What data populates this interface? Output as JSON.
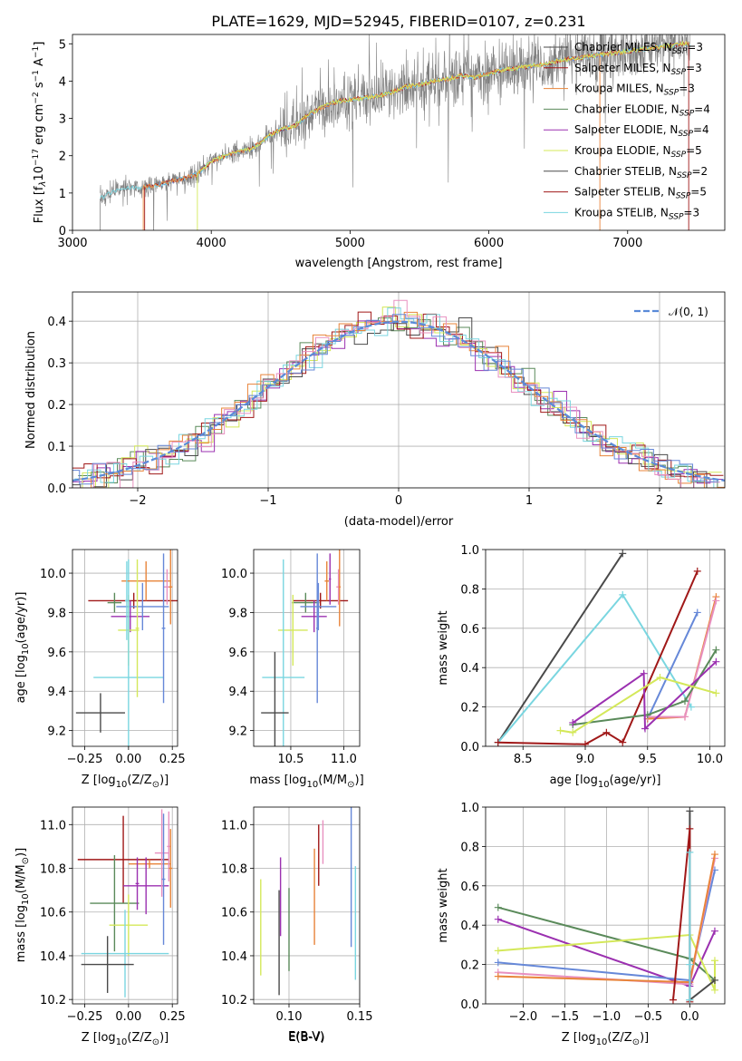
{
  "colors": [
    "#5a8a5a",
    "#9b30b0",
    "#d4e85a",
    "#4a4a4a",
    "#a01818",
    "#7ad6e0",
    "#e8843a",
    "#e890c0",
    "#6688d8"
  ],
  "ssp_models": [
    {
      "label": "Chabrier MILES, N",
      "sub": "SSP",
      "suffix": "=3"
    },
    {
      "label": "Salpeter MILES, N",
      "sub": "SSP",
      "suffix": "=3"
    },
    {
      "label": "Kroupa MILES, N",
      "sub": "SSP",
      "suffix": "=3"
    },
    {
      "label": "Chabrier ELODIE, N",
      "sub": "SSP",
      "suffix": "=4"
    },
    {
      "label": "Salpeter ELODIE, N",
      "sub": "SSP",
      "suffix": "=4"
    },
    {
      "label": "Kroupa ELODIE, N",
      "sub": "SSP",
      "suffix": "=5"
    },
    {
      "label": "Chabrier STELIB, N",
      "sub": "SSP",
      "suffix": "=2"
    },
    {
      "label": "Salpeter STELIB, N",
      "sub": "SSP",
      "suffix": "=5"
    },
    {
      "label": "Kroupa STELIB, N",
      "sub": "SSP",
      "suffix": "=3"
    }
  ],
  "chart_data": [
    {
      "type": "line",
      "title": "PLATE=1629, MJD=52945, FIBERID=0107, z=0.231",
      "xlabel": "wavelength [Angstrom, rest frame]",
      "ylabel": "Flux [f",
      "ylabel_sub": "λ",
      "ylabel_rest": "10",
      "ylabel_exp": "−17",
      "ylabel_units": " erg cm",
      "ylabel_exp2": "−2",
      "ylabel_s": " s",
      "ylabel_exp3": "−1",
      "ylabel_A": " A",
      "ylabel_exp4": "−1",
      "ylabel_close": "]",
      "xlim": [
        3000,
        7700
      ],
      "ylim": [
        0,
        5.25
      ],
      "xticks": [
        "3000",
        "4000",
        "5000",
        "6000",
        "7000"
      ],
      "yticks": [
        "0",
        "1",
        "2",
        "3",
        "4",
        "5"
      ],
      "legend": "upper right",
      "grid": false,
      "data_color": "#808080",
      "continuum": [
        [
          3200,
          0.85
        ],
        [
          3300,
          1.05
        ],
        [
          3400,
          1.15
        ],
        [
          3500,
          1.15
        ],
        [
          3600,
          1.2
        ],
        [
          3700,
          1.3
        ],
        [
          3800,
          1.4
        ],
        [
          3900,
          1.5
        ],
        [
          4000,
          1.85
        ],
        [
          4100,
          2.0
        ],
        [
          4200,
          2.1
        ],
        [
          4300,
          2.2
        ],
        [
          4400,
          2.5
        ],
        [
          4500,
          2.7
        ],
        [
          4600,
          2.8
        ],
        [
          4700,
          3.1
        ],
        [
          4800,
          3.3
        ],
        [
          4900,
          3.45
        ],
        [
          5000,
          3.5
        ],
        [
          5100,
          3.55
        ],
        [
          5200,
          3.6
        ],
        [
          5300,
          3.7
        ],
        [
          5400,
          3.85
        ],
        [
          5500,
          3.9
        ],
        [
          5600,
          4.0
        ],
        [
          5700,
          4.05
        ],
        [
          5800,
          4.15
        ],
        [
          5900,
          4.1
        ],
        [
          6000,
          4.2
        ],
        [
          6100,
          4.3
        ],
        [
          6200,
          4.35
        ],
        [
          6300,
          4.4
        ],
        [
          6400,
          4.45
        ],
        [
          6500,
          4.55
        ],
        [
          6600,
          4.6
        ],
        [
          6700,
          4.65
        ],
        [
          6800,
          4.7
        ],
        [
          6900,
          4.75
        ],
        [
          7000,
          4.8
        ],
        [
          7100,
          4.85
        ],
        [
          7200,
          4.9
        ],
        [
          7300,
          4.95
        ],
        [
          7400,
          5.0
        ]
      ]
    },
    {
      "type": "step",
      "xlabel": "(data-model)/error",
      "ylabel": "Normed distribution",
      "xlim": [
        -2.5,
        2.5
      ],
      "ylim": [
        0,
        0.47
      ],
      "xticks": [
        "−2",
        "−1",
        "0",
        "1",
        "2"
      ],
      "yticks": [
        "0.0",
        "0.1",
        "0.2",
        "0.3",
        "0.4"
      ],
      "grid": true,
      "legend": "upper right",
      "gaussian_label": "𝒩(0, 1)",
      "gaussian_color": "#5a8ad8",
      "bin_width": 0.1
    },
    {
      "type": "errorbar",
      "xlabel": "Z [log",
      "xlabel_sub": "10",
      "xlabel_rest": "(Z/Z",
      "xlabel_sun": "⊙",
      "xlabel_close": ")]",
      "ylabel": "age  [log",
      "ylabel_sub": "10",
      "ylabel_rest": "(age/yr)]",
      "xlim": [
        -0.32,
        0.28
      ],
      "ylim": [
        9.12,
        10.12
      ],
      "xticks": [
        "−0.25",
        "0.00",
        "0.25"
      ],
      "yticks": [
        "9.2",
        "9.4",
        "9.6",
        "9.8",
        "10.0"
      ],
      "grid": true,
      "points": [
        {
          "c": 4,
          "x": 0.03,
          "xerr": 0.26,
          "y": 9.86,
          "yerr": 0.04
        },
        {
          "c": 0,
          "x": -0.08,
          "xerr": 0.04,
          "y": 9.85,
          "yerr": 0.05
        },
        {
          "c": 1,
          "x": 0.01,
          "xerr": 0.11,
          "y": 9.78,
          "yerr": 0.08
        },
        {
          "c": 8,
          "x": 0.08,
          "xerr": 0.15,
          "y": 9.83,
          "yerr": 0.12
        },
        {
          "c": 2,
          "x": 0.0,
          "xerr": 0.06,
          "y": 9.71,
          "yerr": 0.18
        },
        {
          "c": 5,
          "x": 0.0,
          "xerr": 0.2,
          "y": 9.47,
          "yerr": 0.6
        },
        {
          "c": 3,
          "x": -0.16,
          "xerr": 0.14,
          "y": 9.29,
          "yerr": 0.1
        },
        {
          "c": 6,
          "x": 0.1,
          "xerr": 0.14,
          "y": 9.96,
          "yerr": 0.1
        },
        {
          "c": 7,
          "x": 0.22,
          "xerr": 0.02,
          "y": 9.93,
          "yerr": 0.09
        },
        {
          "c": 8,
          "x": 0.2,
          "xerr": 0.01,
          "y": 9.72,
          "yerr": 0.38
        },
        {
          "c": 6,
          "x": 0.24,
          "xerr": 0.01,
          "y": 9.93,
          "yerr": 0.19
        },
        {
          "c": 2,
          "x": 0.05,
          "xerr": 0.01,
          "y": 9.72,
          "yerr": 0.35
        },
        {
          "c": 5,
          "x": -0.01,
          "xerr": 0.01,
          "y": 9.86,
          "yerr": 0.2
        }
      ]
    },
    {
      "type": "errorbar",
      "xlabel": "mass [log",
      "xlabel_sub": "10",
      "xlabel_rest": "(M/M",
      "xlabel_sun": "⊙",
      "xlabel_close": ")]",
      "xlim": [
        10.15,
        11.15
      ],
      "ylim": [
        9.12,
        10.12
      ],
      "xticks": [
        "10.5",
        "11.0"
      ],
      "yticks": [
        "9.2",
        "9.4",
        "9.6",
        "9.8",
        "10.0"
      ],
      "grid": true,
      "points": [
        {
          "c": 4,
          "x": 10.78,
          "xerr": 0.26,
          "y": 9.86,
          "yerr": 0.04
        },
        {
          "c": 0,
          "x": 10.64,
          "xerr": 0.13,
          "y": 9.85,
          "yerr": 0.05
        },
        {
          "c": 1,
          "x": 10.72,
          "xerr": 0.12,
          "y": 9.78,
          "yerr": 0.08
        },
        {
          "c": 8,
          "x": 10.76,
          "xerr": 0.17,
          "y": 9.83,
          "yerr": 0.12
        },
        {
          "c": 2,
          "x": 10.52,
          "xerr": 0.14,
          "y": 9.71,
          "yerr": 0.18
        },
        {
          "c": 5,
          "x": 10.43,
          "xerr": 0.2,
          "y": 9.47,
          "yerr": 0.6
        },
        {
          "c": 3,
          "x": 10.35,
          "xerr": 0.13,
          "y": 9.29,
          "yerr": 0.31
        },
        {
          "c": 6,
          "x": 10.84,
          "xerr": 0.02,
          "y": 9.96,
          "yerr": 0.1
        },
        {
          "c": 7,
          "x": 10.95,
          "xerr": 0.02,
          "y": 9.93,
          "yerr": 0.09
        },
        {
          "c": 8,
          "x": 10.75,
          "xerr": 0.01,
          "y": 9.72,
          "yerr": 0.38
        },
        {
          "c": 6,
          "x": 10.96,
          "xerr": 0.01,
          "y": 9.93,
          "yerr": 0.2
        },
        {
          "c": 1,
          "x": 10.87,
          "xerr": 0.01,
          "y": 9.97,
          "yerr": 0.13
        }
      ]
    },
    {
      "type": "line",
      "xlabel": "age  [log",
      "xlabel_sub": "10",
      "xlabel_rest": "(age/yr)]",
      "ylabel": "mass weight",
      "xlim": [
        8.2,
        10.12
      ],
      "ylim": [
        0,
        1.0
      ],
      "xticks": [
        "8.5",
        "9.0",
        "9.5",
        "10.0"
      ],
      "yticks": [
        "0.0",
        "0.2",
        "0.4",
        "0.6",
        "0.8",
        "1.0"
      ],
      "grid": true,
      "series": [
        {
          "c": 3,
          "x": [
            8.3,
            9.3
          ],
          "y": [
            0.02,
            0.98
          ]
        },
        {
          "c": 5,
          "x": [
            8.3,
            9.3,
            9.85
          ],
          "y": [
            0.02,
            0.77,
            0.2
          ]
        },
        {
          "c": 4,
          "x": [
            8.3,
            9.0,
            9.17,
            9.3,
            9.9
          ],
          "y": [
            0.02,
            0.01,
            0.07,
            0.02,
            0.89
          ]
        },
        {
          "c": 8,
          "x": [
            9.5,
            9.9
          ],
          "y": [
            0.14,
            0.68
          ]
        },
        {
          "c": 6,
          "x": [
            9.5,
            9.8,
            10.05
          ],
          "y": [
            0.14,
            0.15,
            0.76
          ]
        },
        {
          "c": 7,
          "x": [
            9.5,
            9.8,
            10.05
          ],
          "y": [
            0.15,
            0.15,
            0.74
          ]
        },
        {
          "c": 0,
          "x": [
            8.9,
            9.5,
            9.8,
            10.05
          ],
          "y": [
            0.11,
            0.16,
            0.23,
            0.49
          ]
        },
        {
          "c": 1,
          "x": [
            8.9,
            9.47,
            9.48,
            10.05
          ],
          "y": [
            0.12,
            0.37,
            0.09,
            0.43
          ]
        },
        {
          "c": 2,
          "x": [
            8.8,
            8.9,
            9.6,
            10.05
          ],
          "y": [
            0.08,
            0.07,
            0.35,
            0.27
          ]
        }
      ]
    },
    {
      "type": "errorbar",
      "xlabel": "Z [log",
      "xlabel_sub": "10",
      "xlabel_rest": "(Z/Z",
      "xlabel_sun": "⊙",
      "xlabel_close": ")]",
      "ylabel": "mass [log",
      "ylabel_sub": "10",
      "ylabel_rest": "(M/M",
      "ylabel_sun": "⊙",
      "ylabel_close": ")]",
      "xlim": [
        -0.32,
        0.28
      ],
      "ylim": [
        10.18,
        11.08
      ],
      "xticks": [
        "−0.25",
        "0.00",
        "0.25"
      ],
      "yticks": [
        "10.2",
        "10.4",
        "10.6",
        "10.8",
        "11.0"
      ],
      "grid": true,
      "points": [
        {
          "c": 4,
          "x": -0.03,
          "xerr": 0.26,
          "y": 10.84,
          "yerr": 0.2
        },
        {
          "c": 6,
          "x": 0.12,
          "xerr": 0.12,
          "y": 10.82,
          "yerr": 0.02
        },
        {
          "c": 1,
          "x": 0.1,
          "xerr": 0.13,
          "y": 10.72,
          "yerr": 0.13
        },
        {
          "c": 0,
          "x": -0.08,
          "xerr": 0.14,
          "y": 10.64,
          "yerr": 0.22
        },
        {
          "c": 2,
          "x": 0.0,
          "xerr": 0.11,
          "y": 10.54,
          "yerr": 0.14
        },
        {
          "c": 5,
          "x": -0.02,
          "xerr": 0.25,
          "y": 10.41,
          "yerr": 0.2
        },
        {
          "c": 3,
          "x": -0.12,
          "xerr": 0.15,
          "y": 10.36,
          "yerr": 0.13
        },
        {
          "c": 7,
          "x": 0.19,
          "xerr": 0.04,
          "y": 10.87,
          "yerr": 0.2
        },
        {
          "c": 8,
          "x": 0.2,
          "xerr": 0.01,
          "y": 10.75,
          "yerr": 0.3
        },
        {
          "c": 7,
          "x": 0.23,
          "xerr": 0.01,
          "y": 10.9,
          "yerr": 0.16
        },
        {
          "c": 6,
          "x": 0.24,
          "xerr": 0.01,
          "y": 10.8,
          "yerr": 0.18
        },
        {
          "c": 1,
          "x": 0.05,
          "xerr": 0.01,
          "y": 10.73,
          "yerr": 0.12
        }
      ]
    },
    {
      "type": "errorbar",
      "xlabel": "E(B-V)",
      "xlim": [
        0.075,
        0.15
      ],
      "ylim": [
        10.18,
        11.08
      ],
      "xticks": [
        "0.10",
        "0.15"
      ],
      "yticks": [
        "10.2",
        "10.4",
        "10.6",
        "10.8",
        "11.0"
      ],
      "grid": true,
      "points": [
        {
          "c": 2,
          "x": 0.08,
          "xerr": 0,
          "y": 10.53,
          "yerr": 0.22
        },
        {
          "c": 3,
          "x": 0.093,
          "xerr": 0,
          "y": 10.46,
          "yerr": 0.24
        },
        {
          "c": 1,
          "x": 0.094,
          "xerr": 0,
          "y": 10.67,
          "yerr": 0.18
        },
        {
          "c": 0,
          "x": 0.1,
          "xerr": 0,
          "y": 10.52,
          "yerr": 0.19
        },
        {
          "c": 6,
          "x": 0.118,
          "xerr": 0,
          "y": 10.67,
          "yerr": 0.22
        },
        {
          "c": 4,
          "x": 0.121,
          "xerr": 0,
          "y": 10.86,
          "yerr": 0.14
        },
        {
          "c": 7,
          "x": 0.124,
          "xerr": 0,
          "y": 10.92,
          "yerr": 0.1
        },
        {
          "c": 8,
          "x": 0.144,
          "xerr": 0,
          "y": 10.77,
          "yerr": 0.33
        },
        {
          "c": 5,
          "x": 0.147,
          "xerr": 0,
          "y": 10.55,
          "yerr": 0.26
        }
      ]
    },
    {
      "type": "line",
      "xlabel": "Z [log",
      "xlabel_sub": "10",
      "xlabel_rest": "(Z/Z",
      "xlabel_sun": "⊙",
      "xlabel_close": ")]",
      "ylabel": "mass weight",
      "xlim": [
        -2.45,
        0.42
      ],
      "ylim": [
        0,
        1.0
      ],
      "xticks": [
        "−2.0",
        "−1.5",
        "−1.0",
        "−0.5",
        "0.0"
      ],
      "yticks": [
        "0.0",
        "0.2",
        "0.4",
        "0.6",
        "0.8",
        "1.0"
      ],
      "grid": true,
      "series": [
        {
          "c": 0,
          "x": [
            -2.3,
            0.0,
            0.3
          ],
          "y": [
            0.49,
            0.23,
            0.12
          ]
        },
        {
          "c": 1,
          "x": [
            -2.3,
            0.0,
            0.3
          ],
          "y": [
            0.43,
            0.09,
            0.37
          ]
        },
        {
          "c": 2,
          "x": [
            -2.3,
            0.0,
            0.3,
            0.3
          ],
          "y": [
            0.27,
            0.35,
            0.07,
            0.22
          ]
        },
        {
          "c": 8,
          "x": [
            -2.3,
            0.0,
            0.3
          ],
          "y": [
            0.21,
            0.12,
            0.68
          ]
        },
        {
          "c": 7,
          "x": [
            -2.3,
            0.0,
            0.3
          ],
          "y": [
            0.16,
            0.1,
            0.74
          ]
        },
        {
          "c": 6,
          "x": [
            -2.3,
            0.0,
            0.3
          ],
          "y": [
            0.14,
            0.11,
            0.76
          ]
        },
        {
          "c": 3,
          "x": [
            0.0,
            0.0,
            0.3
          ],
          "y": [
            0.98,
            0.02,
            0.12
          ]
        },
        {
          "c": 4,
          "x": [
            -0.2,
            0.0,
            0.0
          ],
          "y": [
            0.02,
            0.89,
            0.01
          ]
        },
        {
          "c": 5,
          "x": [
            0.0,
            0.0,
            0.0
          ],
          "y": [
            0.77,
            0.02,
            0.2
          ]
        }
      ]
    }
  ]
}
